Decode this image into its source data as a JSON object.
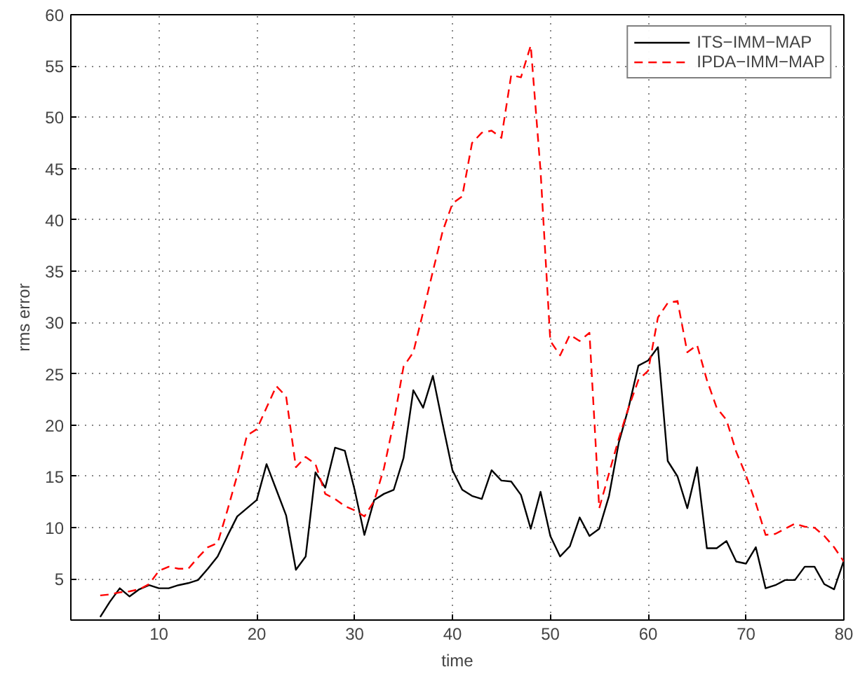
{
  "chart_data": {
    "type": "line",
    "xlabel": "time",
    "ylabel": "rms error",
    "x": [
      4,
      5,
      6,
      7,
      8,
      9,
      10,
      11,
      12,
      13,
      14,
      15,
      16,
      17,
      18,
      19,
      20,
      21,
      22,
      23,
      24,
      25,
      26,
      27,
      28,
      29,
      30,
      31,
      32,
      33,
      34,
      35,
      36,
      37,
      38,
      39,
      40,
      41,
      42,
      43,
      44,
      45,
      46,
      47,
      48,
      49,
      50,
      51,
      52,
      53,
      54,
      55,
      56,
      57,
      58,
      59,
      60,
      61,
      62,
      63,
      64,
      65,
      66,
      67,
      68,
      69,
      70,
      71,
      72,
      73,
      74,
      75,
      76,
      77,
      78,
      79,
      80
    ],
    "series": [
      {
        "name": "ITS−IMM−MAP",
        "color": "#000000",
        "line_style": "solid",
        "values": [
          1.3,
          2.8,
          4.1,
          3.3,
          4.0,
          4.4,
          4.1,
          4.1,
          4.4,
          4.6,
          4.9,
          6.0,
          7.2,
          9.2,
          11.1,
          11.9,
          12.7,
          16.2,
          13.7,
          11.2,
          5.9,
          7.2,
          15.4,
          13.9,
          17.8,
          17.5,
          13.7,
          9.3,
          12.7,
          13.3,
          13.7,
          16.8,
          23.4,
          21.7,
          24.8,
          20.1,
          15.6,
          13.7,
          13.1,
          12.8,
          15.6,
          14.6,
          14.5,
          13.2,
          9.9,
          13.5,
          9.2,
          7.2,
          8.2,
          11.0,
          9.2,
          9.9,
          13.1,
          18.3,
          21.7,
          25.8,
          26.3,
          27.6,
          16.5,
          15.0,
          11.9,
          15.9,
          8.0,
          8.0,
          8.7,
          6.7,
          6.5,
          8.1,
          4.1,
          4.4,
          4.9,
          4.9,
          6.2,
          6.2,
          4.5,
          4.0,
          6.8
        ]
      },
      {
        "name": "IPDA−IMM−MAP",
        "color": "#ff0000",
        "line_style": "dashed",
        "values": [
          3.4,
          3.5,
          3.7,
          3.8,
          4.0,
          4.5,
          5.8,
          6.2,
          6.0,
          6.0,
          7.1,
          8.1,
          8.5,
          11.7,
          15.1,
          19.0,
          19.6,
          21.7,
          23.8,
          22.8,
          15.9,
          16.9,
          16.2,
          13.3,
          12.8,
          12.1,
          11.7,
          11.1,
          12.6,
          15.8,
          20.3,
          25.7,
          27.1,
          31.0,
          35.0,
          38.9,
          41.6,
          42.3,
          47.5,
          48.5,
          48.7,
          48.0,
          54.1,
          53.9,
          57.0,
          44.8,
          28.2,
          26.8,
          28.8,
          28.2,
          29.0,
          11.9,
          15.3,
          18.7,
          21.7,
          24.4,
          25.3,
          30.5,
          31.9,
          32.1,
          27.1,
          27.8,
          24.4,
          21.7,
          20.5,
          17.4,
          15.1,
          12.4,
          9.3,
          9.4,
          9.9,
          10.4,
          10.1,
          10.0,
          9.2,
          8.1,
          6.7
        ]
      }
    ],
    "xlim": [
      1,
      80
    ],
    "ylim": [
      1,
      60
    ],
    "xticks": [
      10,
      20,
      30,
      40,
      50,
      60,
      70,
      80
    ],
    "yticks": [
      5,
      10,
      15,
      20,
      25,
      30,
      35,
      40,
      45,
      50,
      55,
      60
    ],
    "grid": true,
    "legend": "top right",
    "marker": "none"
  }
}
